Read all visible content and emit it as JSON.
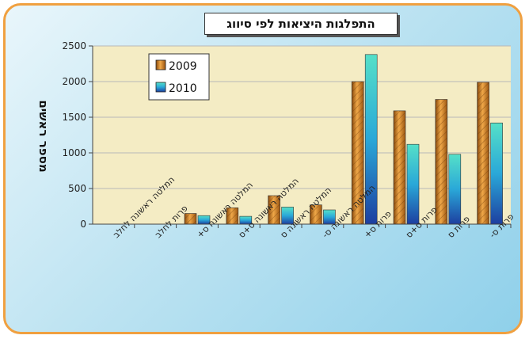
{
  "chart_data": {
    "type": "bar",
    "title": "התפלגות היציאות לפי סיווג",
    "ylabel": "מספר ראשים",
    "xlabel": "",
    "ylim": [
      0,
      2500
    ],
    "yticks": [
      0,
      500,
      1000,
      1500,
      2000,
      2500
    ],
    "grid": true,
    "legend_position": "top-left",
    "categories": [
      "המלטה ראשונה לחלב",
      "פרות לחלב",
      "המלטה ראשונה ס+",
      "המלטה ראשונה ס+ס",
      "המלטה ראשונה ס",
      "המלטה ראשונה ס-",
      "פרות ס+",
      "פרות ס+ס",
      "פרות ס",
      "פרות ס-"
    ],
    "series": [
      {
        "name": "2009",
        "color": "#c87a1e",
        "values": [
          0,
          0,
          150,
          230,
          400,
          270,
          2000,
          1590,
          1750,
          1990
        ]
      },
      {
        "name": "2010",
        "color": "#2aaec8",
        "values": [
          0,
          0,
          120,
          110,
          240,
          200,
          2380,
          1120,
          980,
          1420
        ]
      }
    ]
  }
}
